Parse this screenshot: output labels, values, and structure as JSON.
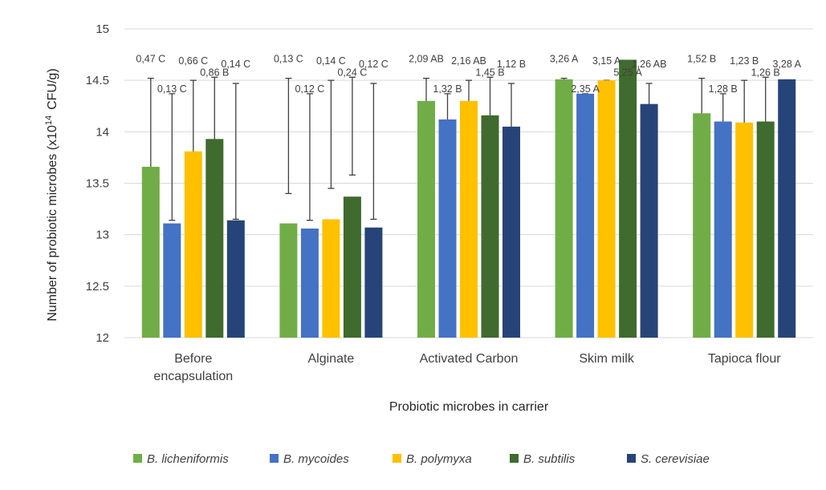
{
  "chart_data": {
    "type": "bar",
    "title": "",
    "xlabel": "Probiotic microbes in carrier",
    "ylabel_main": "Number of probiotic microbes (x10",
    "ylabel_sup": "14",
    "ylabel_unit": "CFU/g)",
    "ylim": [
      12,
      15
    ],
    "ytick_values": [
      12,
      12.5,
      13,
      13.5,
      14,
      14.5,
      15
    ],
    "yticks": [
      "12",
      "12.5",
      "13",
      "13.5",
      "14",
      "14.5",
      "15"
    ],
    "grid": true,
    "legend_position": "bottom",
    "categories": [
      [
        "Before",
        "encapsulation"
      ],
      [
        "Alginate"
      ],
      [
        "Activated Carbon"
      ],
      [
        "Skim milk"
      ],
      [
        "Tapioca flour"
      ]
    ],
    "series": [
      {
        "name": "B. licheniformis",
        "color": "#70ad47",
        "values": [
          13.66,
          13.11,
          14.3,
          14.51,
          14.18
        ],
        "err_low": [
          13.4,
          13.4,
          13.4,
          13.4,
          13.4
        ],
        "err_high": [
          14.52,
          14.52,
          14.52,
          14.52,
          14.52
        ],
        "labels": [
          "0,47 C",
          "0,13 C",
          "2,09 AB",
          "3,26 A",
          "1,52 B"
        ]
      },
      {
        "name": "B. mycoides",
        "color": "#4472c4",
        "values": [
          13.11,
          13.06,
          14.12,
          14.37,
          14.1
        ],
        "err_low": [
          13.14,
          13.14,
          13.14,
          13.14,
          13.14
        ],
        "err_high": [
          14.37,
          14.37,
          14.37,
          14.37,
          14.37
        ],
        "labels": [
          "0,13 C",
          "0,12 C",
          "1,32 B",
          "2,35 A",
          "1,28 B"
        ]
      },
      {
        "name": "B. polymyxa",
        "color": "#ffc000",
        "values": [
          13.81,
          13.15,
          14.3,
          14.5,
          14.09
        ],
        "err_low": [
          13.45,
          13.45,
          13.45,
          13.45,
          13.45
        ],
        "err_high": [
          14.5,
          14.5,
          14.5,
          14.5,
          14.5
        ],
        "labels": [
          "0,66 C",
          "0,14 C",
          "2,16 AB",
          "3,15 A",
          "1,23 B"
        ]
      },
      {
        "name": "B. subtilis",
        "color": "#3f6b2e",
        "values": [
          13.93,
          13.37,
          14.16,
          14.7,
          14.1
        ],
        "err_low": [
          13.58,
          13.58,
          13.58,
          13.58,
          13.58
        ],
        "err_high": [
          14.53,
          14.53,
          14.53,
          14.53,
          14.53
        ],
        "labels": [
          "0,86 B",
          "0,24 C",
          "1,45 B",
          "5,25 A",
          "1,26 B"
        ]
      },
      {
        "name": "S. cerevisiae",
        "color": "#264478",
        "values": [
          13.14,
          13.07,
          14.05,
          14.27,
          14.51
        ],
        "err_low": [
          13.15,
          13.15,
          13.15,
          13.15,
          13.15
        ],
        "err_high": [
          14.47,
          14.47,
          14.47,
          14.47,
          14.47
        ],
        "labels": [
          "0,14 C",
          "0,12 C",
          "1,12 B",
          "1,26 AB",
          "3,28 A"
        ]
      }
    ]
  }
}
